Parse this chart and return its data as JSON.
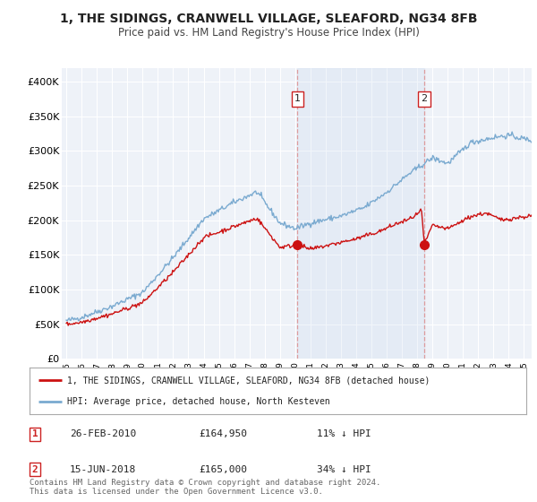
{
  "title": "1, THE SIDINGS, CRANWELL VILLAGE, SLEAFORD, NG34 8FB",
  "subtitle": "Price paid vs. HM Land Registry's House Price Index (HPI)",
  "title_fontsize": 10,
  "subtitle_fontsize": 8.5,
  "background_color": "#ffffff",
  "plot_bg_color": "#eef2f8",
  "grid_color": "#ffffff",
  "hpi_color": "#7aaad0",
  "price_color": "#cc1111",
  "ylim": [
    0,
    420000
  ],
  "yticks": [
    0,
    50000,
    100000,
    150000,
    200000,
    250000,
    300000,
    350000,
    400000
  ],
  "ytick_labels": [
    "£0",
    "£50K",
    "£100K",
    "£150K",
    "£200K",
    "£250K",
    "£300K",
    "£350K",
    "£400K"
  ],
  "legend_entry1": "1, THE SIDINGS, CRANWELL VILLAGE, SLEAFORD, NG34 8FB (detached house)",
  "legend_entry2": "HPI: Average price, detached house, North Kesteven",
  "sale1_date": "26-FEB-2010",
  "sale1_price": "£164,950",
  "sale1_pct": "11% ↓ HPI",
  "sale2_date": "15-JUN-2018",
  "sale2_price": "£165,000",
  "sale2_pct": "34% ↓ HPI",
  "footer": "Contains HM Land Registry data © Crown copyright and database right 2024.\nThis data is licensed under the Open Government Licence v3.0.",
  "sale1_x": 2010.15,
  "sale1_y": 164950,
  "sale2_x": 2018.45,
  "sale2_y": 165000,
  "vline1_x": 2010.15,
  "vline2_x": 2018.45,
  "xmin": 1995.0,
  "xmax": 2025.5
}
